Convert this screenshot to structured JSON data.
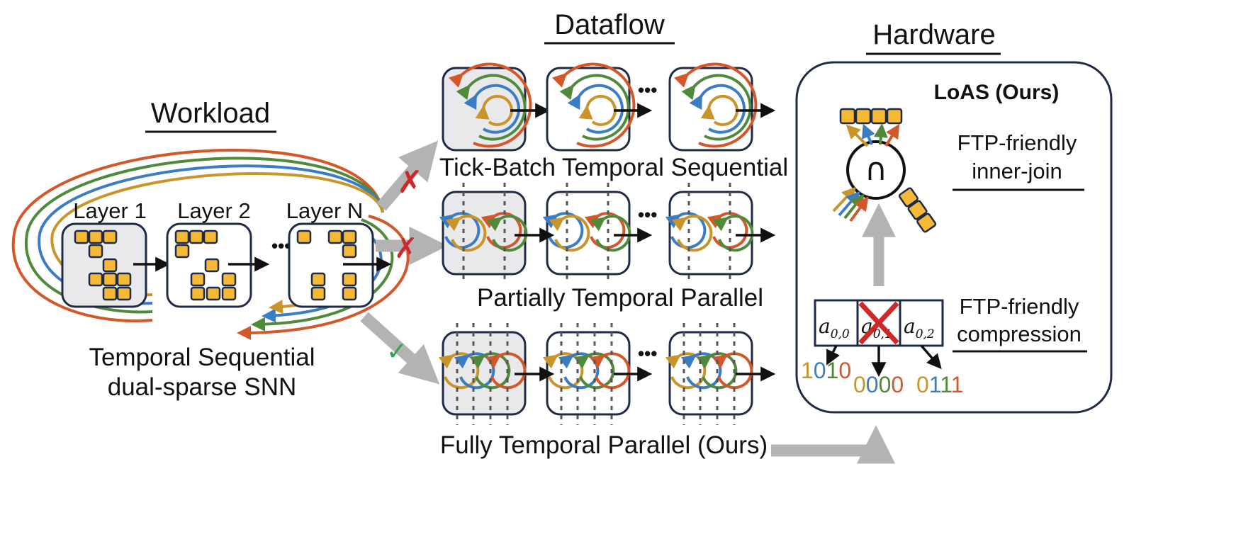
{
  "headers": {
    "workload": "Workload",
    "dataflow": "Dataflow",
    "hardware": "Hardware"
  },
  "workload": {
    "layers": [
      "Layer 1",
      "Layer 2",
      "Layer N"
    ],
    "ellipsis": "•••",
    "caption_line1": "Temporal Sequential",
    "caption_line2": "dual-sparse SNN"
  },
  "dataflow": {
    "row1_label": "Tick-Batch Temporal Sequential",
    "row2_label": "Partially Temporal Parallel",
    "row3_label": "Fully Temporal Parallel (Ours)",
    "reject_mark": "✗",
    "accept_mark": "✓",
    "ellipsis": "•••"
  },
  "hardware": {
    "title": "LoAS (Ours)",
    "intersect_symbol": "∩",
    "join_line1": "FTP-friendly",
    "join_line2": "inner-join",
    "comp_line1": "FTP-friendly",
    "comp_line2": "compression",
    "cells": [
      "a",
      "a",
      "a"
    ],
    "cell_subs": [
      "0,0",
      "0,1",
      "0,2"
    ],
    "bits": [
      [
        "1",
        "0",
        "1",
        "0"
      ],
      [
        "0",
        "0",
        "0",
        "0"
      ],
      [
        "0",
        "1",
        "1",
        "1"
      ]
    ]
  },
  "colors": {
    "orange": "#d4572a",
    "green": "#4f8a3a",
    "blue": "#3b7dc4",
    "gold": "#c9952b",
    "block": "#f5b935",
    "outline": "#1f2a44",
    "grey_arrow": "#b3b3b3",
    "red_x": "#cc2a2a",
    "green_check": "#2aa84a"
  }
}
